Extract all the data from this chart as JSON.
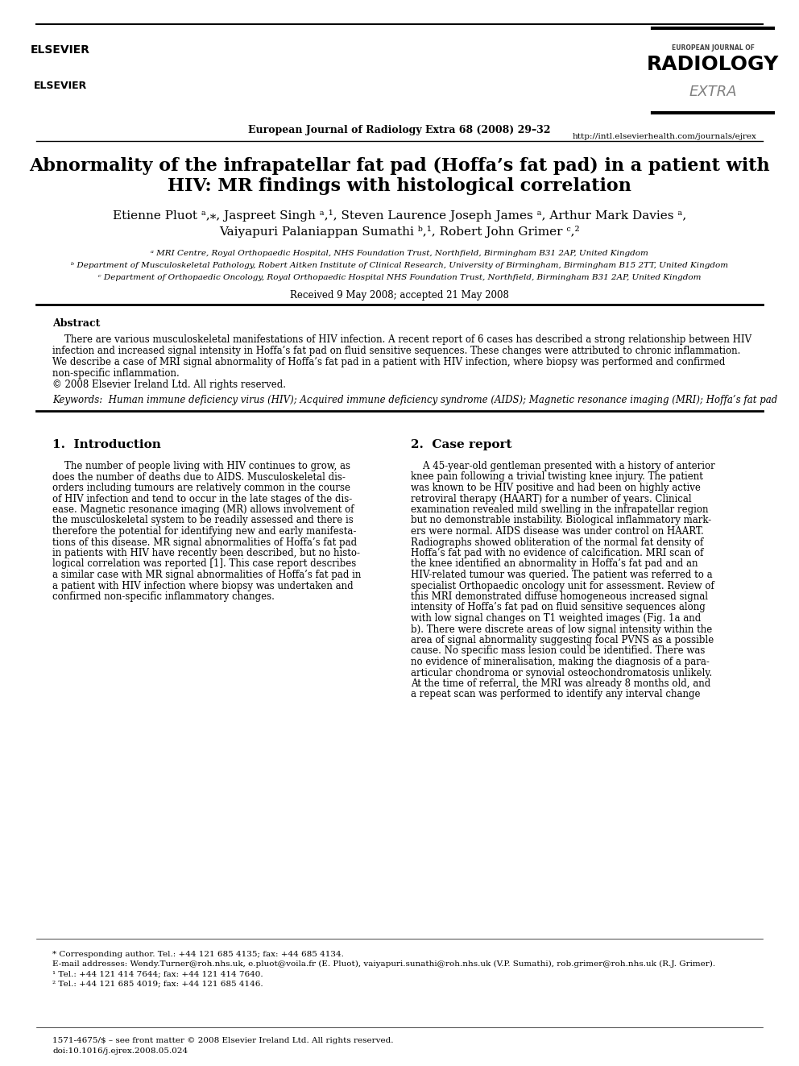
{
  "bg_color": "#ffffff",
  "header_line_color": "#000000",
  "journal_center_text": "European Journal of Radiology Extra 68 (2008) 29–32",
  "journal_url": "http://intl.elsevierhealth.com/journals/ejrex",
  "title_line1": "Abnormality of the infrapatellar fat pad (Hoffa’s fat pad) in a patient with",
  "title_line2": "HIV: MR findings with histological correlation",
  "authors": "Etienne Pluot ᵃ,⁎, Jaspreet Singh ᵃ,¹, Steven Laurence Joseph James ᵃ, Arthur Mark Davies ᵃ,",
  "authors2": "Vaiyapuri Palaniappan Sumathi ᵇ,¹, Robert John Grimer ᶜ,²",
  "affil_a": "ᵃ MRI Centre, Royal Orthopaedic Hospital, NHS Foundation Trust, Northfield, Birmingham B31 2AP, United Kingdom",
  "affil_b": "ᵇ Department of Musculoskeletal Pathology, Robert Aitken Institute of Clinical Research, University of Birmingham, Birmingham B15 2TT, United Kingdom",
  "affil_c": "ᶜ Department of Orthopaedic Oncology, Royal Orthopaedic Hospital NHS Foundation Trust, Northfield, Birmingham B31 2AP, United Kingdom",
  "received": "Received 9 May 2008; accepted 21 May 2008",
  "abstract_title": "Abstract",
  "abstract_text": "    There are various musculoskeletal manifestations of HIV infection. A recent report of 6 cases has described a strong relationship between HIV infection and increased signal intensity in Hoffa’s fat pad on fluid sensitive sequences. These changes were attributed to chronic inflammation. We describe a case of MRI signal abnormality of Hoffa’s fat pad in a patient with HIV infection, where biopsy was performed and confirmed non-specific inflammation.\n© 2008 Elsevier Ireland Ltd. All rights reserved.",
  "keywords": "Keywords:  Human immune deficiency virus (HIV); Acquired immune deficiency syndrome (AIDS); Magnetic resonance imaging (MRI); Hoffa’s fat pad",
  "section1_title": "1.  Introduction",
  "section1_text": "    The number of people living with HIV continues to grow, as does the number of deaths due to AIDS. Musculoskeletal disorders including tumours are relatively common in the course of HIV infection and tend to occur in the late stages of the disease. Magnetic resonance imaging (MR) allows involvement of the musculoskeletal system to be readily assessed and there is therefore the potential for identifying new and early manifestations of this disease. MR signal abnormalities of Hoffa’s fat pad in patients with HIV have recently been described, but no histological correlation was reported [1]. This case report describes a similar case with MR signal abnormalities of Hoffa’s fat pad in a patient with HIV infection where biopsy was undertaken and confirmed non-specific inflammatory changes.",
  "section2_title": "2.  Case report",
  "section2_text": "    A 45-year-old gentleman presented with a history of anterior knee pain following a trivial twisting knee injury. The patient was known to be HIV positive and had been on highly active retroviral therapy (HAART) for a number of years. Clinical examination revealed mild swelling in the infrapatellar region but no demonstrable instability. Biological inflammatory markers were normal. AIDS disease was under control on HAART. Radiographs showed obliteration of the normal fat density of Hoffa’s fat pad with no evidence of calcification. MRI scan of the knee identified an abnormality in Hoffa’s fat pad and an HIV-related tumour was queried. The patient was referred to a specialist Orthopaedic oncology unit for assessment. Review of this MRI demonstrated diffuse homogeneous increased signal intensity of Hoffa’s fat pad on fluid sensitive sequences along with low signal changes on T1 weighted images (Fig. 1a and b). There were discrete areas of low signal intensity within the area of signal abnormality suggesting focal PVNS as a possible cause. No specific mass lesion could be identified. There was no evidence of mineralisation, making the diagnosis of a para-articular chondroma or synovial osteochondromatosis unlikely. At the time of referral, the MRI was already 8 months old, and a repeat scan was performed to identify any interval change",
  "footnote_star": "* Corresponding author. Tel.: +44 121 685 4135; fax: +44 685 4134.",
  "footnote_email": "E-mail addresses: Wendy.Turner@roh.nhs.uk, e.pluot@voila.fr (E. Pluot), vaiyapuri.sunathi@roh.nhs.uk (V.P. Sumathi), rob.grimer@roh.nhs.uk (R.J. Grimer).",
  "footnote_1": "¹ Tel.: +44 121 414 7644; fax: +44 121 414 7640.",
  "footnote_2": "² Tel.: +44 121 685 4019; fax: +44 121 685 4146.",
  "bottom_line1": "1571-4675/$ – see front matter © 2008 Elsevier Ireland Ltd. All rights reserved.",
  "bottom_line2": "doi:10.1016/j.ejrex.2008.05.024",
  "elsevier_logo_text": "ELSEVIER",
  "radiology_logo_text": "RADIOLOGY\nEXTRA"
}
